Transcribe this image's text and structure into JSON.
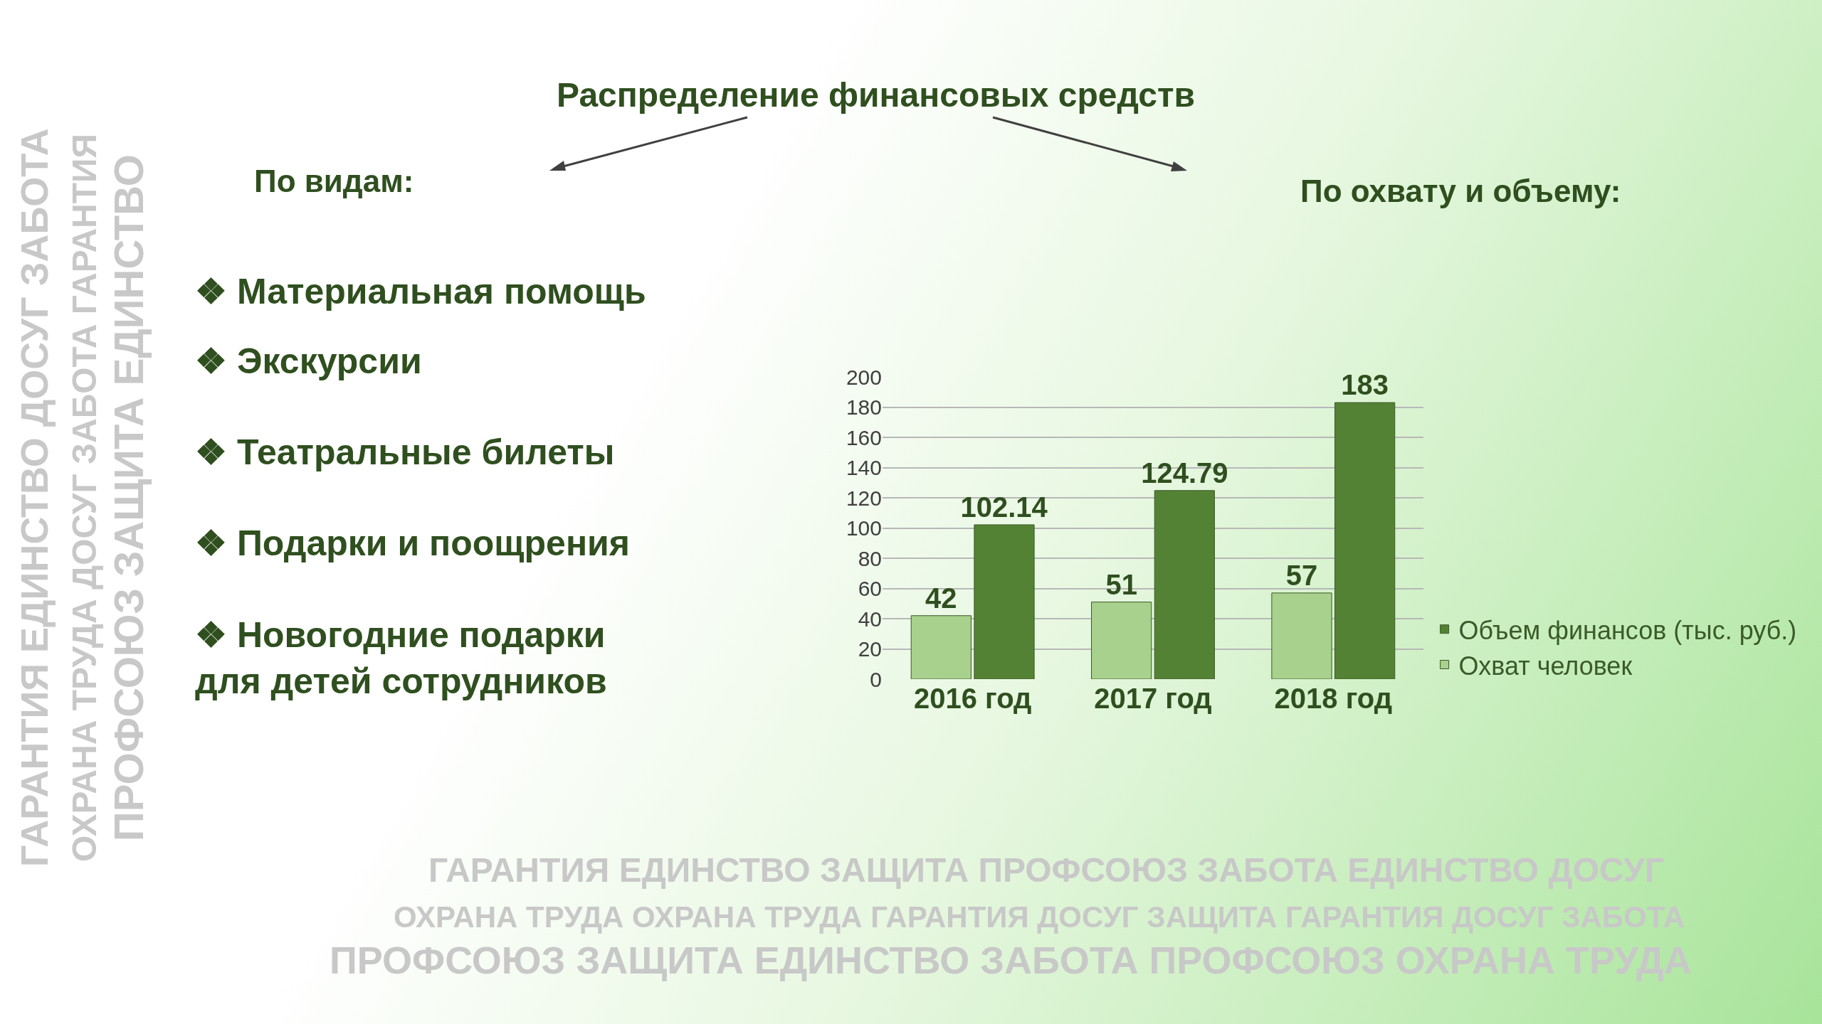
{
  "chart_data": {
    "type": "bar",
    "title": "Распределение финансовых средств",
    "categories": [
      "2016 год",
      "2017 год",
      "2018 год"
    ],
    "series": [
      {
        "name": "Охват человек",
        "color": "#a9d18e",
        "values": [
          42,
          51,
          57
        ]
      },
      {
        "name": "Объем финансов (тыс. руб.)",
        "color": "#548235",
        "values": [
          102.14,
          124.79,
          183
        ]
      }
    ],
    "ylim": [
      0,
      200
    ],
    "yticks": [
      0,
      20,
      40,
      60,
      80,
      100,
      120,
      140,
      160,
      180,
      200
    ],
    "grid": "y",
    "legend": "right",
    "data_labels": true,
    "annotations": [
      "По видам:",
      "По охвату и объему:",
      "❖ Материальная помощь",
      "❖ Экскурсии",
      "❖ Театральные билеты",
      "❖ Подарки и поощрения",
      "❖ Новогодние подарки\nдля детей сотрудников",
      "ГАРАНТИЯ ЕДИНСТВО ЗАЩИТА ПРОФСОЮЗ ЗАБОТА ЕДИНСТВО ДОСУГ",
      "ОХРАНА ТРУДА ОХРАНА ТРУДА ГАРАНТИЯ ДОСУГ ЗАЩИТА ГАРАНТИЯ ДОСУГ ЗАБОТА",
      "ПРОФСОЮЗ ЗАЩИТА ЕДИНСТВО ЗАБОТА ПРОФСОЮЗ ОХРАНА ТРУДА",
      "ГАРАНТИЯ ЕДИНСТВО ДОСУГ ЗАБОТА",
      "ОХРАНА ТРУДА ДОСУГ ЗАБОТА ГАРАНТИЯ",
      "ПРОФСОЮЗ ЗАЩИТА ЕДИНСТВО"
    ]
  }
}
